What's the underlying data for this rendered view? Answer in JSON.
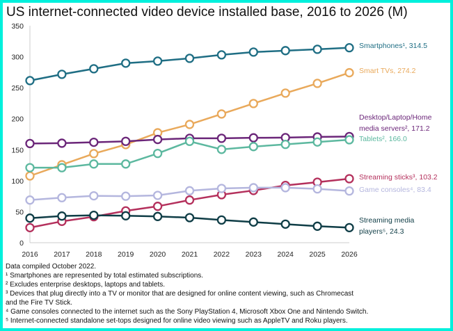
{
  "chart_data": {
    "type": "line",
    "title": "US internet-connected video device installed base, 2016 to 2026 (M)",
    "x": [
      2016,
      2017,
      2018,
      2019,
      2020,
      2021,
      2022,
      2023,
      2024,
      2025,
      2026
    ],
    "ylim": [
      0,
      350
    ],
    "yticks": [
      0,
      50,
      100,
      150,
      200,
      250,
      300,
      350
    ],
    "grid": false,
    "legend": "end-of-line labels",
    "series": [
      {
        "name": "Smartphones¹, 314.5",
        "label_lines": [
          "Smartphones¹, 314.5"
        ],
        "color": "#1f6e84",
        "values": [
          261.5,
          271.6,
          280.6,
          289.6,
          292.9,
          297.4,
          303.0,
          307.5,
          309.8,
          312.0,
          314.5
        ]
      },
      {
        "name": "Smart TVs, 274.2",
        "label_lines": [
          "Smart TVs, 274.2"
        ],
        "color": "#e9a95b",
        "values": [
          107.7,
          125.7,
          143.7,
          158.2,
          177.3,
          190.8,
          207.6,
          224.5,
          241.3,
          257.0,
          274.2
        ]
      },
      {
        "name": "Desktop/Laptop/Home media servers², 171.2",
        "label_lines": [
          "Desktop/Laptop/Home",
          "media servers², 171.2"
        ],
        "color": "#6b2679",
        "values": [
          160.0,
          160.5,
          162.0,
          163.5,
          166.5,
          168.4,
          168.4,
          169.2,
          169.5,
          170.6,
          171.2
        ]
      },
      {
        "name": "Tablets², 166.0",
        "label_lines": [
          "Tablets², 166.0"
        ],
        "color": "#5cb89f",
        "values": [
          121.0,
          121.0,
          127.0,
          127.0,
          144.0,
          163.5,
          150.5,
          155.0,
          158.6,
          162.4,
          166.0
        ]
      },
      {
        "name": "Streaming sticks³, 103.2",
        "label_lines": [
          "Streaming sticks³, 103.2"
        ],
        "color": "#b4305c",
        "values": [
          24.3,
          34.4,
          41.9,
          51.3,
          58.7,
          68.8,
          77.4,
          84.2,
          92.4,
          97.6,
          103.2
        ]
      },
      {
        "name": "Game consoles⁴, 83.4",
        "label_lines": [
          "Game consoles⁴, 83.4"
        ],
        "color": "#b4b6de",
        "values": [
          68.8,
          72.6,
          75.6,
          75.0,
          76.3,
          83.8,
          87.5,
          88.7,
          88.7,
          86.8,
          83.4
        ]
      },
      {
        "name": "Streaming media players⁵, 24.3",
        "label_lines": [
          "Streaming media",
          "players⁵, 24.3"
        ],
        "color": "#0f3d46",
        "values": [
          39.6,
          43.0,
          44.2,
          43.4,
          42.3,
          40.4,
          36.6,
          33.3,
          29.9,
          26.6,
          24.3
        ]
      }
    ]
  },
  "notes": [
    "Data compiled October 2022.",
    "¹ Smartphones are represented by total estimated subscriptions.",
    "² Excludes enterprise desktops, laptops and tablets.",
    "³ Devices that plug directly into a TV or monitor that are designed for online content viewing, such as Chromecast",
    "and the Fire TV Stick.",
    "⁴ Game consoles connected to the internet such as the Sony PlayStation 4, Microsoft Xbox One and Nintendo Switch.",
    "⁵ Internet-connected standalone set-tops designed for online video viewing such as AppleTV and Roku players."
  ]
}
